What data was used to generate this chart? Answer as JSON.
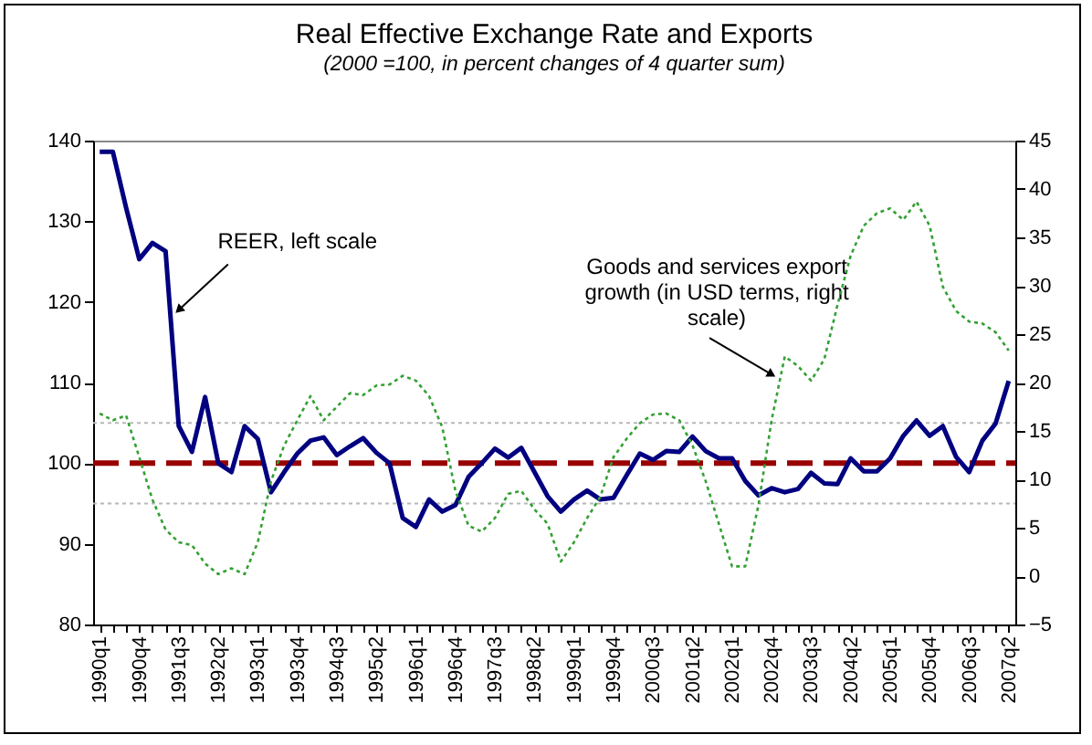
{
  "chart_data": {
    "type": "line",
    "title": "Real Effective Exchange Rate and Exports",
    "subtitle": "(2000 =100, in percent changes of 4 quarter sum)",
    "categories": [
      "1990q1",
      null,
      null,
      "1990q4",
      null,
      null,
      "1991q3",
      null,
      null,
      "1992q2",
      null,
      null,
      "1993q1",
      null,
      null,
      "1993q4",
      null,
      null,
      "1994q3",
      null,
      null,
      "1995q2",
      null,
      null,
      "1996q1",
      null,
      null,
      "1996q4",
      null,
      null,
      "1997q3",
      null,
      null,
      "1998q2",
      null,
      null,
      "1999q1",
      null,
      null,
      "1999q4",
      null,
      null,
      "2000q3",
      null,
      null,
      "2001q2",
      null,
      null,
      "2002q1",
      null,
      null,
      "2002q4",
      null,
      null,
      "2003q3",
      null,
      null,
      "2004q2",
      null,
      null,
      "2005q1",
      null,
      null,
      "2005q4",
      null,
      null,
      "2006q3",
      null,
      null,
      "2007q2"
    ],
    "series": [
      {
        "color": "#000080",
        "line_style": "solid",
        "values": [
          138.6,
          138.6,
          131.7,
          125.3,
          127.3,
          126.3,
          104.6,
          101.4,
          108.2,
          100,
          98.9,
          104.6,
          103.0,
          96.4,
          98.9,
          101.2,
          102.8,
          103.2,
          101.0,
          102.1,
          103.1,
          101.3,
          100,
          93.2,
          92.1,
          95.5,
          94.0,
          94.8,
          98.3,
          100,
          101.8,
          100.7,
          101.9,
          98.9,
          95.9,
          94,
          95.5,
          96.6,
          95.5,
          95.7,
          98.5,
          101.2,
          100.4,
          101.5,
          101.4,
          103.3,
          101.5,
          100.6,
          100.6,
          97.8,
          96.0,
          96.9,
          96.4,
          96.8,
          98.8,
          97.5,
          97.4,
          100.6,
          99.0,
          99.0,
          100.6,
          103.4,
          105.3,
          103.4,
          104.6,
          100.8,
          98.9,
          102.8,
          104.9,
          110.2
        ]
      },
      {
        "color": "#33a033",
        "line_style": "dotted",
        "axis": "y2",
        "values": [
          16.8,
          16.1,
          16.6,
          12.3,
          7.9,
          4.8,
          3.5,
          3.2,
          1.3,
          0.2,
          0.8,
          0.2,
          3.5,
          9.8,
          13.5,
          16.1,
          18.6,
          16.1,
          17.5,
          18.9,
          18.7,
          19.7,
          19.8,
          20.7,
          20.2,
          18.6,
          15.4,
          8.8,
          5.2,
          4.6,
          6.0,
          8.5,
          8.8,
          6.9,
          5.4,
          1.5,
          3.5,
          6.0,
          8.2,
          12.3,
          14.2,
          15.8,
          16.7,
          16.8,
          16.1,
          13.5,
          9.8,
          5.4,
          1.0,
          1.0,
          7.3,
          16.1,
          22.7,
          21.7,
          20.2,
          22.4,
          28.0,
          33.1,
          36.2,
          37.5,
          38.0,
          36.8,
          38.7,
          36.2,
          29.9,
          27.4,
          26.3,
          26.1,
          25.2,
          23.3
        ]
      }
    ],
    "ylim": [
      80,
      140
    ],
    "yticks": [
      80,
      90,
      100,
      110,
      120,
      130,
      140
    ],
    "y2lim": [
      -5,
      45
    ],
    "y2ticks": [
      -5,
      0,
      5,
      10,
      15,
      20,
      25,
      30,
      35,
      40,
      45
    ],
    "ref_lines": [
      {
        "axis": "y",
        "value": 100,
        "color": "#990000",
        "line_style": "dashed"
      },
      {
        "axis": "y",
        "value": 95,
        "color": "#b8b8b8",
        "line_style": "dotted"
      },
      {
        "axis": "y",
        "value": 105,
        "color": "#b8b8b8",
        "line_style": "dotted"
      }
    ],
    "annotations": [
      {
        "text": "REER, left scale",
        "x": "1991q3",
        "y": 119
      },
      {
        "text": "Goods and services export growth (in USD terms, right scale)",
        "x": "2002q4",
        "y": 111
      }
    ],
    "grid": false
  }
}
